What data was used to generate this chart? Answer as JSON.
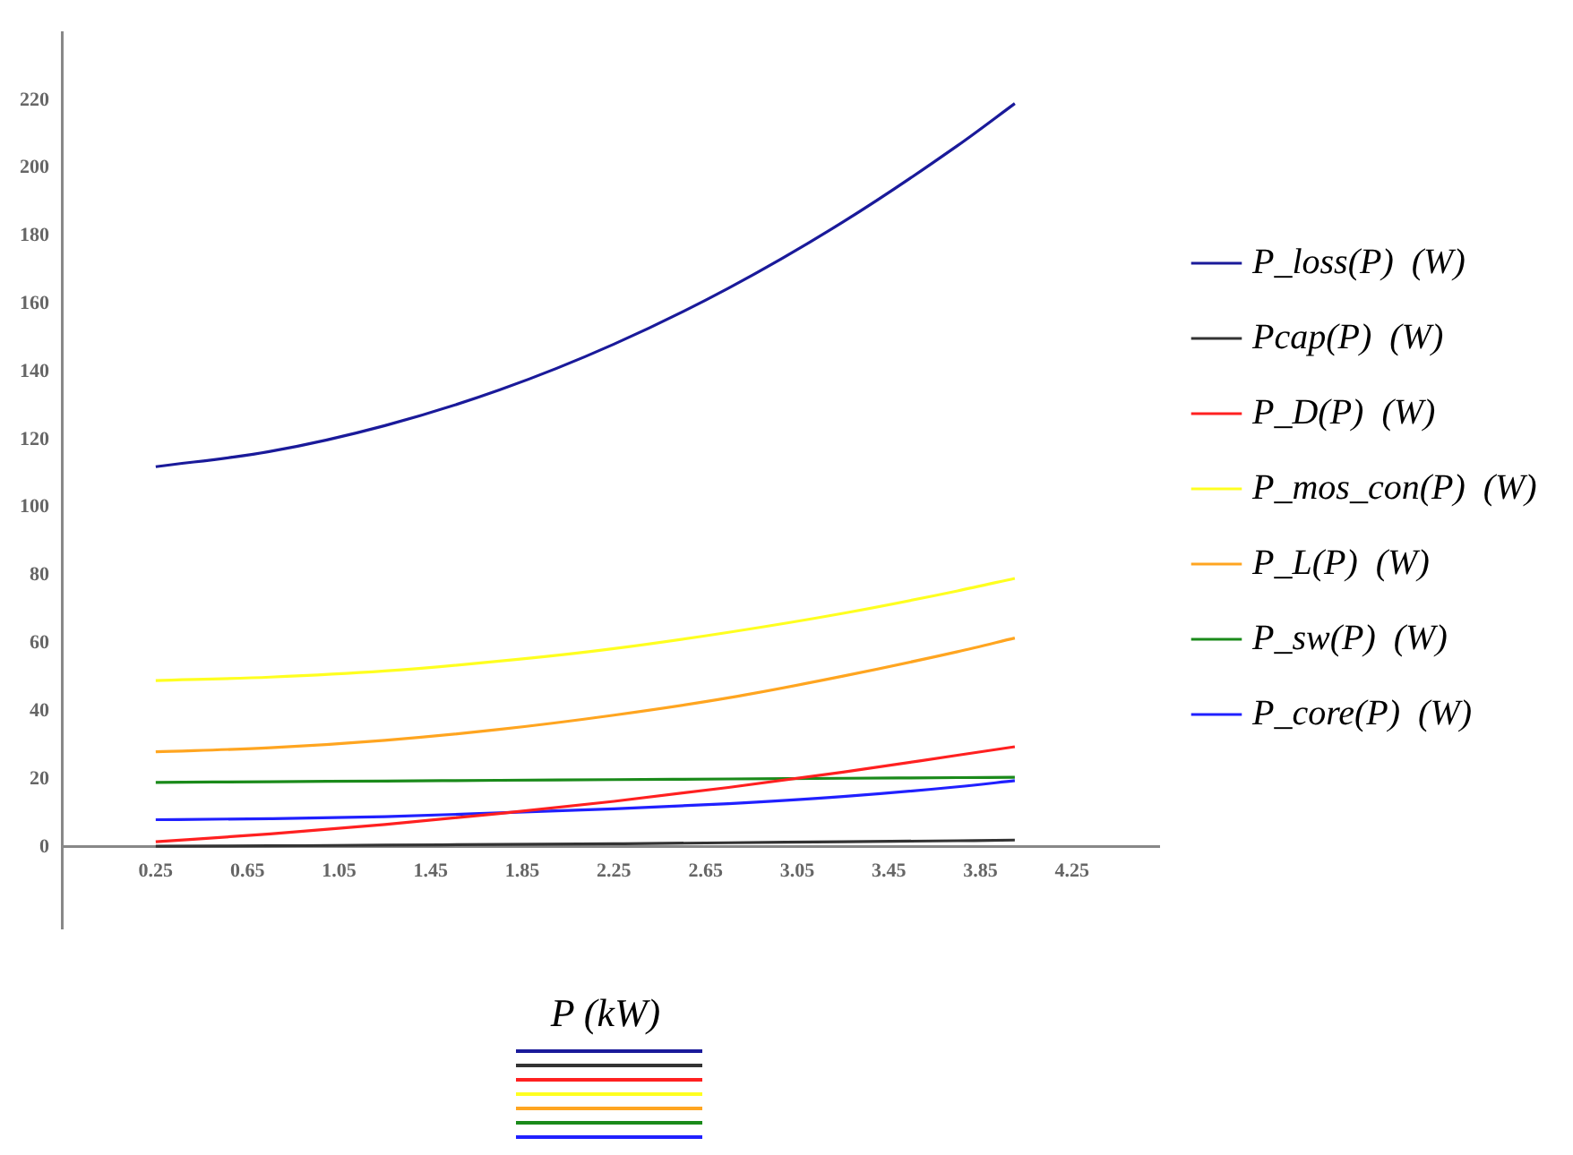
{
  "chart_data": {
    "type": "line",
    "xlabel": "P (kW)",
    "x": [
      0.25,
      0.75,
      1.25,
      1.75,
      2.25,
      2.75,
      3.25,
      3.75,
      4.0
    ],
    "xlim": [
      -0.16,
      4.63
    ],
    "ylim": [
      -24,
      240
    ],
    "xticks": [
      0.25,
      0.65,
      1.05,
      1.45,
      1.85,
      2.25,
      2.65,
      3.05,
      3.45,
      3.85,
      4.25
    ],
    "yticks": [
      0,
      20,
      40,
      60,
      80,
      100,
      120,
      140,
      160,
      180,
      200,
      220
    ],
    "grid": false,
    "legend": "right",
    "marker": "none",
    "line_style": "solid",
    "series": [
      {
        "name": "P_loss(P)  (W)",
        "color": "#1a1a9a",
        "values": [
          112.0,
          116.5,
          124.1,
          134.6,
          148.1,
          164.6,
          184.1,
          206.6,
          219.0
        ]
      },
      {
        "name": "Pcap(P)  (W)",
        "color": "#333333",
        "values": [
          0.2,
          0.3,
          0.5,
          0.7,
          0.9,
          1.2,
          1.5,
          1.8,
          2.0
        ]
      },
      {
        "name": "P_D(P)  (W)",
        "color": "#ff2020",
        "values": [
          1.5,
          3.8,
          6.6,
          9.8,
          13.4,
          17.5,
          22.0,
          27.0,
          29.5
        ]
      },
      {
        "name": "P_mos_con(P)  (W)",
        "color": "#ffff20",
        "values": [
          49.0,
          50.0,
          51.8,
          54.7,
          58.4,
          63.2,
          68.8,
          75.4,
          79.1
        ]
      },
      {
        "name": "P_L(P)  (W)",
        "color": "#ffa520",
        "values": [
          28.0,
          29.2,
          31.4,
          34.6,
          38.8,
          43.9,
          50.3,
          57.5,
          61.5
        ]
      },
      {
        "name": "P_sw(P)  (W)",
        "color": "#1a8a1a",
        "values": [
          19.0,
          19.2,
          19.4,
          19.6,
          19.8,
          20.0,
          20.2,
          20.4,
          20.5
        ]
      },
      {
        "name": "P_core(P)  (W)",
        "color": "#2020ff",
        "values": [
          8.0,
          8.3,
          8.9,
          10.0,
          11.2,
          12.7,
          14.8,
          17.7,
          19.5
        ]
      }
    ]
  }
}
